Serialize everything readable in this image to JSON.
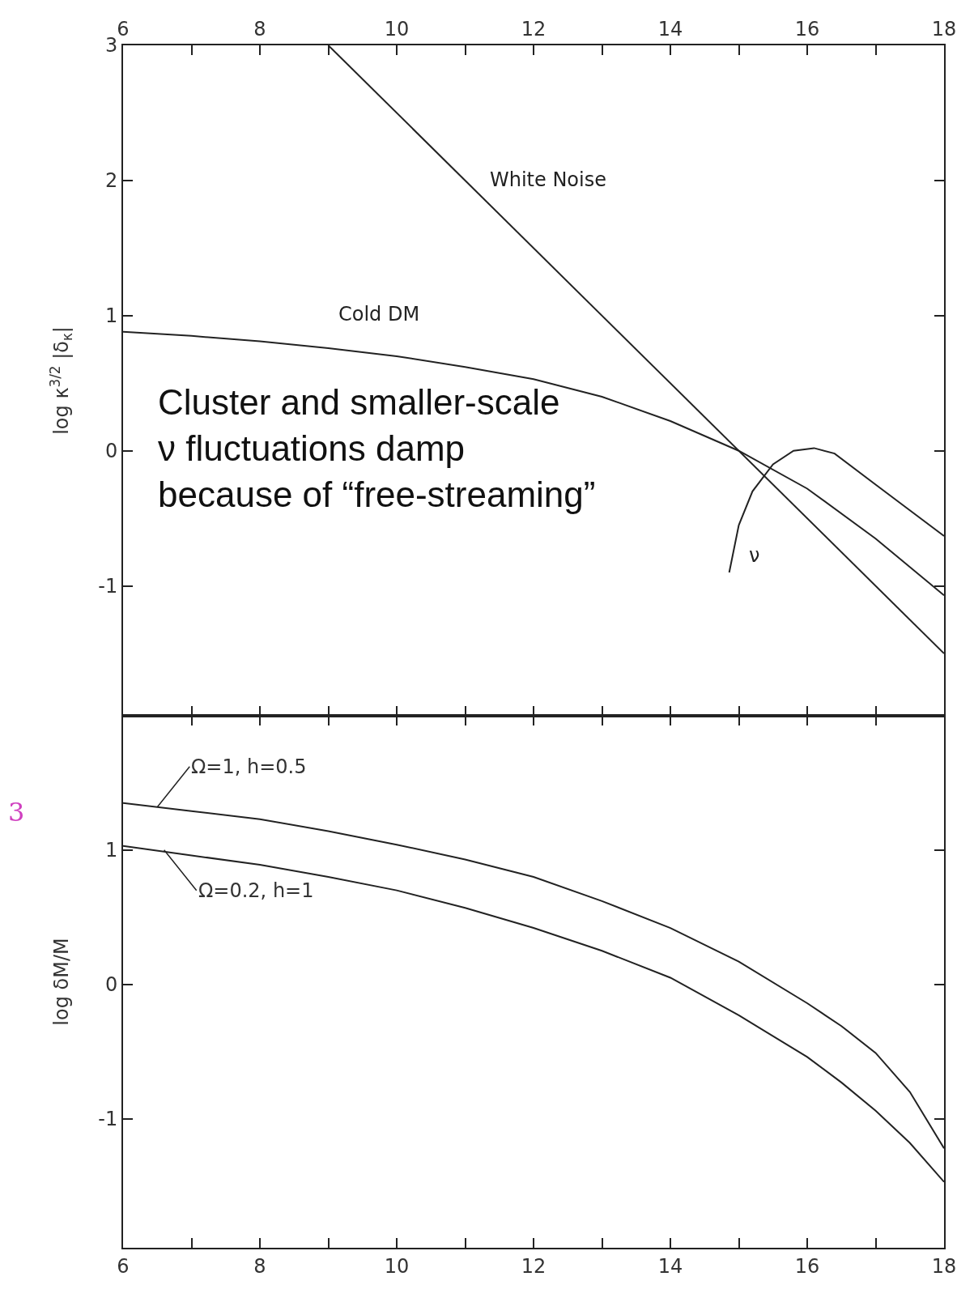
{
  "chart_data": [
    {
      "type": "line",
      "ylabel": "log κ$^{3/2}$ |δ$_{κ}$|",
      "xlim": [
        6,
        18
      ],
      "xticks": [
        6,
        {
          "value": 7,
          "label": null
        },
        8,
        {
          "value": 9,
          "label": null
        },
        10,
        {
          "value": 11,
          "label": null
        },
        12,
        {
          "value": 13,
          "label": null
        },
        14,
        {
          "value": 15,
          "label": null
        },
        16,
        {
          "value": 17,
          "label": null
        },
        18
      ],
      "ylim": [
        -1.96,
        3
      ],
      "yticks": [
        -1,
        0,
        1,
        2,
        3
      ],
      "legend": false,
      "marker": "none",
      "line_style": "solid",
      "series": [
        {
          "name": "White Noise",
          "color": "#222222",
          "x": [
            9,
            18
          ],
          "values": [
            3,
            -1.5
          ]
        },
        {
          "name": "Cold DM",
          "color": "#222222",
          "x": [
            6,
            7,
            8,
            9,
            10,
            11,
            12,
            13,
            14,
            15,
            16,
            17,
            18
          ],
          "values": [
            0.88,
            0.85,
            0.81,
            0.76,
            0.7,
            0.62,
            0.53,
            0.4,
            0.22,
            0,
            -0.28,
            -0.65,
            -1.07
          ]
        },
        {
          "name": "ν",
          "color": "#222222",
          "x": [
            14.86,
            15.0,
            15.2,
            15.5,
            15.8,
            16.1,
            16.4,
            17,
            17.5,
            18
          ],
          "values": [
            -0.9,
            -0.55,
            -0.3,
            -0.1,
            0.0,
            0.02,
            -0.02,
            -0.25,
            -0.44,
            -0.63
          ]
        }
      ],
      "annotations": [
        "Cluster and smaller-scale\nν fluctuations damp\nbecause of “free-streaming”"
      ]
    },
    {
      "type": "line",
      "ylabel": "log δM/M",
      "xlim": [
        6,
        18
      ],
      "xticks": [
        6,
        {
          "value": 7,
          "label": null
        },
        8,
        {
          "value": 9,
          "label": null
        },
        10,
        {
          "value": 11,
          "label": null
        },
        12,
        {
          "value": 13,
          "label": null
        },
        14,
        {
          "value": 15,
          "label": null
        },
        16,
        {
          "value": 17,
          "label": null
        },
        18
      ],
      "ylim": [
        -1.96,
        2
      ],
      "yticks": [
        -1,
        0,
        1
      ],
      "legend": false,
      "marker": "none",
      "line_style": "solid",
      "series": [
        {
          "color": "#222222",
          "x": [
            6,
            7,
            8,
            9,
            10,
            11,
            12,
            13,
            14,
            15,
            16,
            16.5,
            17,
            17.5,
            18
          ],
          "values": [
            1.35,
            1.29,
            1.23,
            1.14,
            1.04,
            0.93,
            0.8,
            0.62,
            0.42,
            0.17,
            -0.14,
            -0.31,
            -0.51,
            -0.8,
            -1.22
          ]
        },
        {
          "color": "#222222",
          "x": [
            6,
            7,
            8,
            9,
            10,
            11,
            12,
            13,
            14,
            15,
            16,
            16.5,
            17,
            17.5,
            18
          ],
          "values": [
            1.03,
            0.96,
            0.89,
            0.8,
            0.7,
            0.57,
            0.42,
            0.25,
            0.05,
            -0.23,
            -0.54,
            -0.73,
            -0.94,
            -1.18,
            -1.47
          ]
        }
      ],
      "annotations": [
        {
          "text": "Ω=1, h=0.5",
          "x": 6.5,
          "y": 1.32
        },
        {
          "text": "Ω=0.2, h=1",
          "x": 6.6,
          "y": 1.0
        },
        "3"
      ]
    }
  ]
}
